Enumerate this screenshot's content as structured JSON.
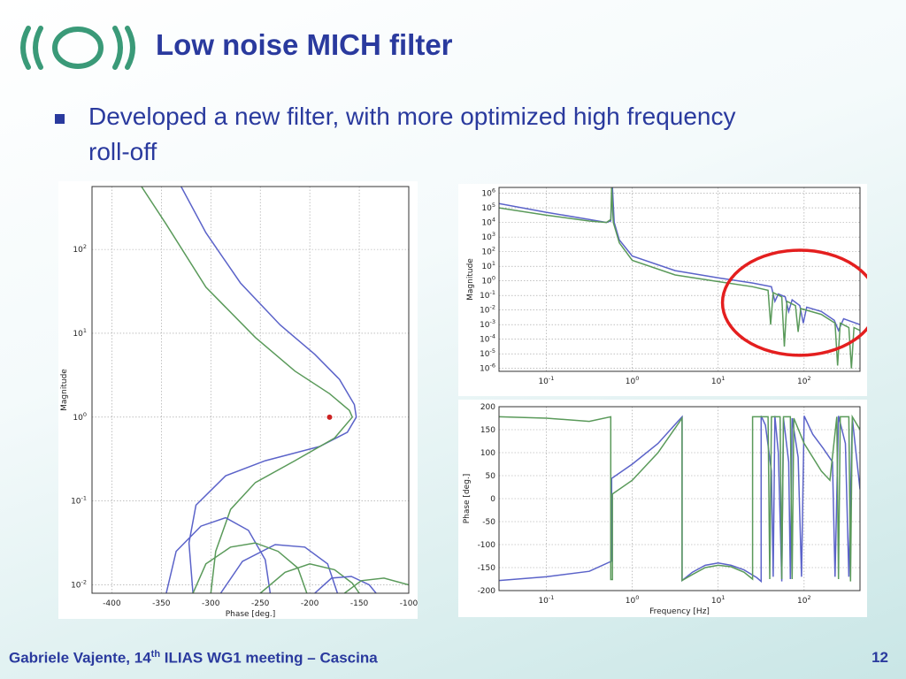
{
  "slide": {
    "title": "Low noise MICH filter",
    "bullet": "Developed a new filter, with more optimized high frequency roll-off",
    "footer_author": "Gabriele Vajente, 14",
    "footer_sup": "th",
    "footer_rest": " ILIAS WG1 meeting – Cascina",
    "page_number": "12"
  },
  "colors": {
    "title": "#2a3a9e",
    "blue_curve": "#5b63c9",
    "green_curve": "#5a9a5a",
    "highlight": "#e41f1f",
    "logo": "#3a9a78"
  },
  "chart_data": [
    {
      "id": "nichols",
      "type": "line",
      "title": "",
      "xlabel": "Phase [deg.]",
      "ylabel": "Magnitude",
      "xlim": [
        -420,
        -100
      ],
      "ylim_log10": [
        -2.1,
        2.75
      ],
      "x_ticks": [
        -400,
        -350,
        -300,
        -250,
        -200,
        -150,
        -100
      ],
      "y_ticks": [
        {
          "v": -2,
          "base": "10",
          "exp": "-2"
        },
        {
          "v": -1,
          "base": "10",
          "exp": "-1"
        },
        {
          "v": 0,
          "base": "10",
          "exp": "0"
        },
        {
          "v": 1,
          "base": "10",
          "exp": "1"
        },
        {
          "v": 2,
          "base": "10",
          "exp": "2"
        }
      ],
      "grid": true,
      "marker": {
        "x": -180,
        "y": 1
      },
      "series": [
        {
          "color": "blue",
          "points": [
            [
              -330,
              2.75
            ],
            [
              -305,
              2.2
            ],
            [
              -270,
              1.6
            ],
            [
              -230,
              1.1
            ],
            [
              -195,
              0.75
            ],
            [
              -170,
              0.45
            ],
            [
              -155,
              0.15
            ],
            [
              -153,
              0.0
            ],
            [
              -162,
              -0.18
            ],
            [
              -190,
              -0.35
            ],
            [
              -245,
              -0.52
            ],
            [
              -285,
              -0.7
            ],
            [
              -315,
              -1.05
            ],
            [
              -322,
              -1.5
            ],
            [
              -318,
              -2.1
            ]
          ]
        },
        {
          "color": "green",
          "points": [
            [
              -370,
              2.75
            ],
            [
              -345,
              2.3
            ],
            [
              -305,
              1.55
            ],
            [
              -255,
              0.95
            ],
            [
              -215,
              0.55
            ],
            [
              -180,
              0.28
            ],
            [
              -160,
              0.08
            ],
            [
              -157,
              0.0
            ],
            [
              -175,
              -0.25
            ],
            [
              -215,
              -0.52
            ],
            [
              -255,
              -0.78
            ],
            [
              -280,
              -1.1
            ],
            [
              -295,
              -1.6
            ],
            [
              -300,
              -2.1
            ]
          ]
        },
        {
          "color": "blue",
          "points": [
            [
              -290,
              -2.1
            ],
            [
              -268,
              -1.72
            ],
            [
              -235,
              -1.52
            ],
            [
              -205,
              -1.55
            ],
            [
              -182,
              -1.75
            ],
            [
              -172,
              -2.1
            ]
          ]
        },
        {
          "color": "blue",
          "points": [
            [
              -345,
              -2.1
            ],
            [
              -335,
              -1.6
            ],
            [
              -310,
              -1.3
            ],
            [
              -285,
              -1.2
            ],
            [
              -262,
              -1.35
            ],
            [
              -245,
              -1.7
            ],
            [
              -240,
              -2.1
            ]
          ]
        },
        {
          "color": "green",
          "points": [
            [
              -318,
              -2.1
            ],
            [
              -305,
              -1.75
            ],
            [
              -280,
              -1.55
            ],
            [
              -255,
              -1.5
            ],
            [
              -232,
              -1.6
            ],
            [
              -212,
              -1.8
            ],
            [
              -203,
              -2.1
            ]
          ]
        },
        {
          "color": "green",
          "points": [
            [
              -250,
              -2.1
            ],
            [
              -225,
              -1.85
            ],
            [
              -200,
              -1.75
            ],
            [
              -175,
              -1.82
            ],
            [
              -157,
              -1.98
            ],
            [
              -150,
              -2.1
            ]
          ]
        },
        {
          "color": "blue",
          "points": [
            [
              -195,
              -2.1
            ],
            [
              -178,
              -1.92
            ],
            [
              -158,
              -1.9
            ],
            [
              -140,
              -2.0
            ],
            [
              -133,
              -2.1
            ]
          ]
        },
        {
          "color": "green",
          "points": [
            [
              -165,
              -2.1
            ],
            [
              -148,
              -1.95
            ],
            [
              -125,
              -1.92
            ],
            [
              -100,
              -2.0
            ]
          ]
        }
      ]
    },
    {
      "id": "magnitude",
      "type": "line",
      "title": "",
      "xlabel": "",
      "ylabel": "Magnitude",
      "xlim_log10": [
        -1.55,
        2.65
      ],
      "ylim_log10": [
        -6.2,
        6.4
      ],
      "x_ticks": [
        {
          "v": -1,
          "base": "10",
          "exp": "-1"
        },
        {
          "v": 0,
          "base": "10",
          "exp": "0"
        },
        {
          "v": 1,
          "base": "10",
          "exp": "1"
        },
        {
          "v": 2,
          "base": "10",
          "exp": "2"
        }
      ],
      "y_ticks": [
        {
          "v": 6,
          "base": "10",
          "exp": "6"
        },
        {
          "v": 5,
          "base": "10",
          "exp": "5"
        },
        {
          "v": 4,
          "base": "10",
          "exp": "4"
        },
        {
          "v": 3,
          "base": "10",
          "exp": "3"
        },
        {
          "v": 2,
          "base": "10",
          "exp": "2"
        },
        {
          "v": 1,
          "base": "10",
          "exp": "1"
        },
        {
          "v": 0,
          "base": "10",
          "exp": "0"
        },
        {
          "v": -1,
          "base": "10",
          "exp": "-1"
        },
        {
          "v": -2,
          "base": "10",
          "exp": "-2"
        },
        {
          "v": -3,
          "base": "10",
          "exp": "-3"
        },
        {
          "v": -4,
          "base": "10",
          "exp": "-4"
        },
        {
          "v": -5,
          "base": "10",
          "exp": "-5"
        },
        {
          "v": -6,
          "base": "10",
          "exp": "-6"
        }
      ],
      "grid": true,
      "highlight_ellipse": {
        "cx_log10": 1.95,
        "cy_log10": -1.5,
        "rx_log10": 0.9,
        "ry_log10": 3.6
      },
      "series": [
        {
          "color": "blue",
          "points": [
            [
              -1.55,
              5.3
            ],
            [
              -1.0,
              4.7
            ],
            [
              -0.5,
              4.2
            ],
            [
              -0.3,
              4.0
            ],
            [
              -0.25,
              4.1
            ],
            [
              -0.23,
              6.4
            ],
            [
              -0.21,
              4.0
            ],
            [
              -0.15,
              2.8
            ],
            [
              0.0,
              1.7
            ],
            [
              0.5,
              0.7
            ],
            [
              1.0,
              0.2
            ],
            [
              1.4,
              -0.15
            ],
            [
              1.62,
              -0.4
            ],
            [
              1.66,
              -1.4
            ],
            [
              1.7,
              -0.9
            ],
            [
              1.78,
              -1.1
            ],
            [
              1.82,
              -2.1
            ],
            [
              1.86,
              -1.3
            ],
            [
              1.95,
              -1.7
            ],
            [
              1.99,
              -2.9
            ],
            [
              2.03,
              -1.8
            ],
            [
              2.2,
              -2.1
            ],
            [
              2.35,
              -2.7
            ],
            [
              2.4,
              -3.4
            ],
            [
              2.46,
              -2.6
            ],
            [
              2.65,
              -3.0
            ]
          ]
        },
        {
          "color": "green",
          "points": [
            [
              -1.55,
              5.0
            ],
            [
              -1.0,
              4.5
            ],
            [
              -0.5,
              4.1
            ],
            [
              -0.3,
              4.0
            ],
            [
              -0.25,
              4.2
            ],
            [
              -0.24,
              6.4
            ],
            [
              -0.22,
              4.0
            ],
            [
              -0.15,
              2.6
            ],
            [
              0.0,
              1.4
            ],
            [
              0.5,
              0.4
            ],
            [
              1.0,
              -0.05
            ],
            [
              1.4,
              -0.4
            ],
            [
              1.58,
              -0.65
            ],
            [
              1.61,
              -3.0
            ],
            [
              1.64,
              -0.8
            ],
            [
              1.74,
              -1.1
            ],
            [
              1.77,
              -4.5
            ],
            [
              1.8,
              -1.4
            ],
            [
              1.9,
              -1.7
            ],
            [
              1.93,
              -3.5
            ],
            [
              1.96,
              -1.9
            ],
            [
              2.2,
              -2.3
            ],
            [
              2.36,
              -2.9
            ],
            [
              2.39,
              -5.8
            ],
            [
              2.42,
              -2.9
            ],
            [
              2.52,
              -3.2
            ],
            [
              2.55,
              -6.0
            ],
            [
              2.58,
              -3.2
            ],
            [
              2.65,
              -3.4
            ]
          ]
        }
      ]
    },
    {
      "id": "phase",
      "type": "line",
      "title": "",
      "xlabel": "Frequency [Hz]",
      "ylabel": "Phase [deg.]",
      "xlim_log10": [
        -1.55,
        2.65
      ],
      "ylim": [
        -200,
        200
      ],
      "x_ticks": [
        {
          "v": -1,
          "base": "10",
          "exp": "-1"
        },
        {
          "v": 0,
          "base": "10",
          "exp": "0"
        },
        {
          "v": 1,
          "base": "10",
          "exp": "1"
        },
        {
          "v": 2,
          "base": "10",
          "exp": "2"
        }
      ],
      "y_ticks": [
        200,
        150,
        100,
        50,
        0,
        -50,
        -100,
        -150,
        -200
      ],
      "grid": true,
      "series": [
        {
          "color": "blue",
          "points": [
            [
              -1.55,
              -178
            ],
            [
              -1.0,
              -170
            ],
            [
              -0.5,
              -158
            ],
            [
              -0.24,
              -136
            ],
            [
              -0.24,
              44
            ],
            [
              0.0,
              75
            ],
            [
              0.3,
              120
            ],
            [
              0.58,
              178
            ],
            [
              0.58,
              -178
            ],
            [
              0.7,
              -160
            ],
            [
              0.85,
              -145
            ],
            [
              1.0,
              -140
            ],
            [
              1.15,
              -145
            ],
            [
              1.3,
              -155
            ],
            [
              1.45,
              -172
            ],
            [
              1.5,
              -180
            ],
            [
              1.5,
              180
            ],
            [
              1.55,
              160
            ],
            [
              1.62,
              60
            ],
            [
              1.64,
              -170
            ],
            [
              1.66,
              180
            ],
            [
              1.7,
              100
            ],
            [
              1.74,
              -180
            ],
            [
              1.76,
              175
            ],
            [
              1.82,
              80
            ],
            [
              1.84,
              -175
            ],
            [
              1.86,
              175
            ],
            [
              1.93,
              90
            ],
            [
              1.97,
              -170
            ],
            [
              2.0,
              180
            ],
            [
              2.1,
              140
            ],
            [
              2.22,
              110
            ],
            [
              2.33,
              80
            ],
            [
              2.36,
              -170
            ],
            [
              2.4,
              180
            ],
            [
              2.48,
              120
            ],
            [
              2.52,
              -170
            ],
            [
              2.56,
              175
            ],
            [
              2.65,
              20
            ]
          ]
        },
        {
          "color": "green",
          "points": [
            [
              -1.55,
              178
            ],
            [
              -1.0,
              175
            ],
            [
              -0.5,
              168
            ],
            [
              -0.25,
              178
            ],
            [
              -0.25,
              -176
            ],
            [
              -0.23,
              -176
            ],
            [
              -0.23,
              10
            ],
            [
              0.0,
              40
            ],
            [
              0.3,
              100
            ],
            [
              0.58,
              175
            ],
            [
              0.58,
              -178
            ],
            [
              0.7,
              -165
            ],
            [
              0.85,
              -150
            ],
            [
              1.0,
              -145
            ],
            [
              1.15,
              -148
            ],
            [
              1.3,
              -160
            ],
            [
              1.4,
              -175
            ],
            [
              1.4,
              178
            ],
            [
              1.58,
              178
            ],
            [
              1.6,
              -175
            ],
            [
              1.62,
              178
            ],
            [
              1.72,
              178
            ],
            [
              1.74,
              -175
            ],
            [
              1.76,
              178
            ],
            [
              1.84,
              178
            ],
            [
              1.86,
              -175
            ],
            [
              1.88,
              175
            ],
            [
              2.0,
              120
            ],
            [
              2.2,
              60
            ],
            [
              2.3,
              40
            ],
            [
              2.38,
              178
            ],
            [
              2.4,
              -175
            ],
            [
              2.42,
              178
            ],
            [
              2.52,
              178
            ],
            [
              2.54,
              -180
            ],
            [
              2.56,
              178
            ],
            [
              2.65,
              150
            ]
          ]
        }
      ]
    }
  ]
}
